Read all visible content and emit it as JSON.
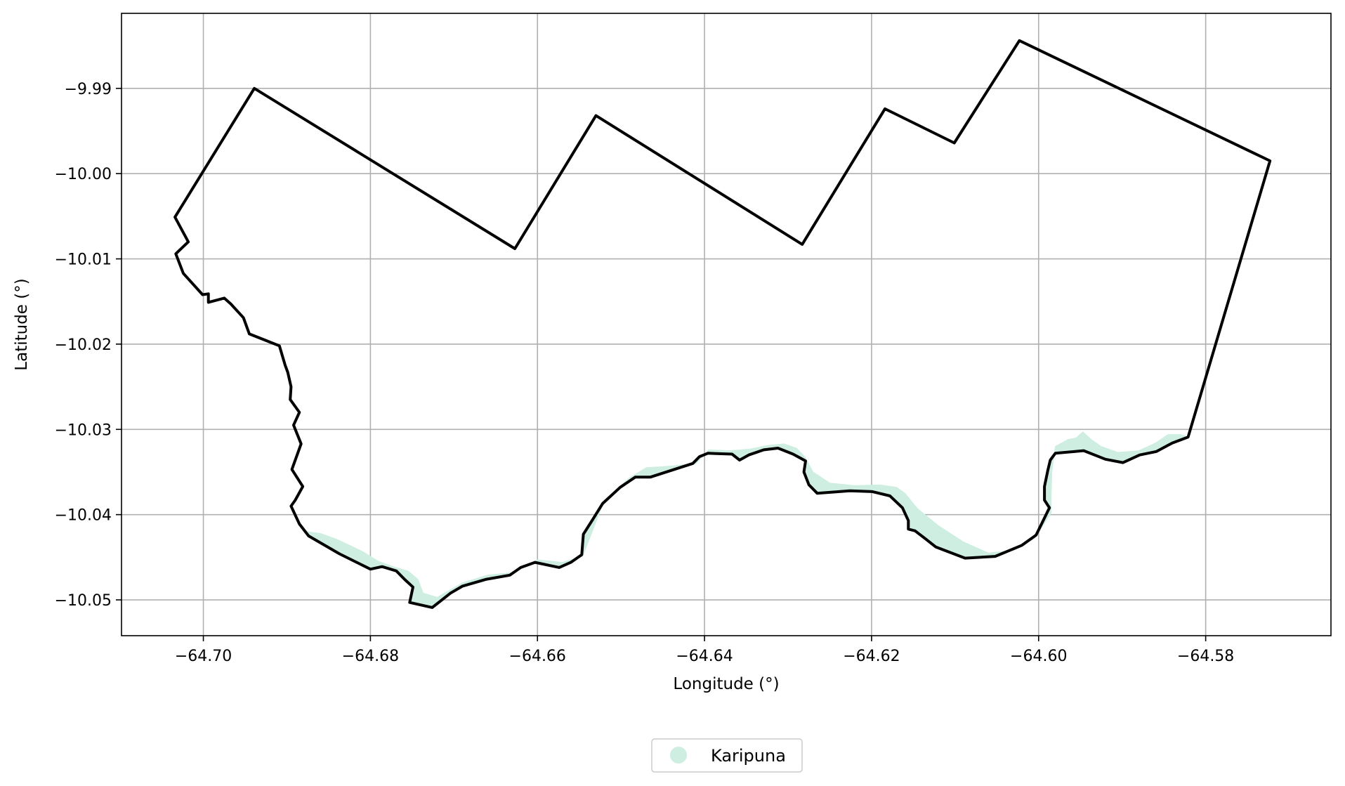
{
  "map": {
    "xlabel": "Longitude (°)",
    "ylabel": "Latitude (°)",
    "xlim": [
      -64.7098,
      -64.565
    ],
    "ylim": [
      -10.0542,
      -9.9812
    ],
    "xticks": [
      {
        "value": -64.7,
        "label": "−64.70"
      },
      {
        "value": -64.68,
        "label": "−64.68"
      },
      {
        "value": -64.66,
        "label": "−64.66"
      },
      {
        "value": -64.64,
        "label": "−64.64"
      },
      {
        "value": -64.62,
        "label": "−64.62"
      },
      {
        "value": -64.6,
        "label": "−64.60"
      },
      {
        "value": -64.58,
        "label": "−64.58"
      }
    ],
    "yticks": [
      {
        "value": -9.99,
        "label": "−9.99"
      },
      {
        "value": -10.0,
        "label": "−10.00"
      },
      {
        "value": -10.01,
        "label": "−10.01"
      },
      {
        "value": -10.02,
        "label": "−10.02"
      },
      {
        "value": -10.03,
        "label": "−10.03"
      },
      {
        "value": -10.04,
        "label": "−10.04"
      },
      {
        "value": -10.05,
        "label": "−10.05"
      }
    ],
    "grid": true,
    "boundary_color": "#000000",
    "territory_color": "#cdeee0",
    "legend": {
      "placement": "bottom-center",
      "entries": [
        {
          "label": "Karipuna",
          "color": "#cdeee0",
          "marker": "circle"
        }
      ]
    },
    "boundary": [
      [
        -64.7034,
        -10.0051
      ],
      [
        -64.6939,
        -9.99
      ],
      [
        -64.6627,
        -10.0088
      ],
      [
        -64.653,
        -9.9932
      ],
      [
        -64.6283,
        -10.0083
      ],
      [
        -64.6184,
        -9.9924
      ],
      [
        -64.6101,
        -9.9964
      ],
      [
        -64.6023,
        -9.9844
      ],
      [
        -64.5723,
        -9.9985
      ],
      [
        -64.5821,
        -10.0309
      ],
      [
        -64.584,
        -10.0316
      ],
      [
        -64.5859,
        -10.0326
      ],
      [
        -64.5879,
        -10.033
      ],
      [
        -64.5899,
        -10.0339
      ],
      [
        -64.592,
        -10.0335
      ],
      [
        -64.5946,
        -10.0325
      ],
      [
        -64.598,
        -10.0328
      ],
      [
        -64.5986,
        -10.0336
      ],
      [
        -64.5989,
        -10.0348
      ],
      [
        -64.5993,
        -10.0367
      ],
      [
        -64.5993,
        -10.0383
      ],
      [
        -64.5987,
        -10.0392
      ],
      [
        -64.6003,
        -10.0424
      ],
      [
        -64.602,
        -10.0436
      ],
      [
        -64.6052,
        -10.0449
      ],
      [
        -64.6088,
        -10.0451
      ],
      [
        -64.6123,
        -10.0438
      ],
      [
        -64.6136,
        -10.0428
      ],
      [
        -64.6148,
        -10.0419
      ],
      [
        -64.6156,
        -10.0417
      ],
      [
        -64.6156,
        -10.0407
      ],
      [
        -64.6163,
        -10.0392
      ],
      [
        -64.6178,
        -10.0378
      ],
      [
        -64.6199,
        -10.0373
      ],
      [
        -64.6226,
        -10.0372
      ],
      [
        -64.6265,
        -10.0375
      ],
      [
        -64.6275,
        -10.0365
      ],
      [
        -64.6281,
        -10.035
      ],
      [
        -64.6279,
        -10.0337
      ],
      [
        -64.6294,
        -10.0329
      ],
      [
        -64.6312,
        -10.0322
      ],
      [
        -64.6329,
        -10.0324
      ],
      [
        -64.6347,
        -10.033
      ],
      [
        -64.6358,
        -10.0336
      ],
      [
        -64.6367,
        -10.0329
      ],
      [
        -64.6396,
        -10.0328
      ],
      [
        -64.6406,
        -10.0332
      ],
      [
        -64.6414,
        -10.034
      ],
      [
        -64.6465,
        -10.0356
      ],
      [
        -64.6483,
        -10.0356
      ],
      [
        -64.6501,
        -10.0368
      ],
      [
        -64.6522,
        -10.0387
      ],
      [
        -64.6534,
        -10.0406
      ],
      [
        -64.6545,
        -10.0423
      ],
      [
        -64.6547,
        -10.0447
      ],
      [
        -64.656,
        -10.0456
      ],
      [
        -64.6574,
        -10.0462
      ],
      [
        -64.6603,
        -10.0456
      ],
      [
        -64.662,
        -10.0462
      ],
      [
        -64.6633,
        -10.0471
      ],
      [
        -64.6662,
        -10.0476
      ],
      [
        -64.669,
        -10.0484
      ],
      [
        -64.6704,
        -10.0492
      ],
      [
        -64.6726,
        -10.0509
      ],
      [
        -64.6753,
        -10.0503
      ],
      [
        -64.6749,
        -10.0485
      ],
      [
        -64.6759,
        -10.0476
      ],
      [
        -64.6769,
        -10.0466
      ],
      [
        -64.6786,
        -10.0461
      ],
      [
        -64.68,
        -10.0464
      ],
      [
        -64.6837,
        -10.0446
      ],
      [
        -64.6874,
        -10.0425
      ],
      [
        -64.6885,
        -10.0411
      ],
      [
        -64.6895,
        -10.039
      ],
      [
        -64.689,
        -10.0383
      ],
      [
        -64.6881,
        -10.0367
      ],
      [
        -64.6894,
        -10.0347
      ],
      [
        -64.6883,
        -10.0317
      ],
      [
        -64.6892,
        -10.0295
      ],
      [
        -64.6885,
        -10.028
      ],
      [
        -64.6896,
        -10.0265
      ],
      [
        -64.6895,
        -10.025
      ],
      [
        -64.6899,
        -10.0233
      ],
      [
        -64.6902,
        -10.0225
      ],
      [
        -64.6909,
        -10.0202
      ],
      [
        -64.6945,
        -10.0188
      ],
      [
        -64.6952,
        -10.0169
      ],
      [
        -64.6967,
        -10.0153
      ],
      [
        -64.6975,
        -10.0146
      ],
      [
        -64.6994,
        -10.0151
      ],
      [
        -64.6994,
        -10.0141
      ],
      [
        -64.7001,
        -10.0142
      ],
      [
        -64.7024,
        -10.0117
      ],
      [
        -64.7033,
        -10.0094
      ],
      [
        -64.7018,
        -10.008
      ],
      [
        -64.7034,
        -10.0051
      ]
    ],
    "territory_upper": [
      [
        -64.6876,
        -10.042
      ],
      [
        -64.686,
        -10.0422
      ],
      [
        -64.684,
        -10.0429
      ],
      [
        -64.681,
        -10.0443
      ],
      [
        -64.679,
        -10.0455
      ],
      [
        -64.677,
        -10.0462
      ],
      [
        -64.6755,
        -10.0466
      ],
      [
        -64.6743,
        -10.0476
      ],
      [
        -64.6737,
        -10.0492
      ],
      [
        -64.672,
        -10.0497
      ],
      [
        -64.669,
        -10.048
      ],
      [
        -64.666,
        -10.0471
      ],
      [
        -64.663,
        -10.0468
      ],
      [
        -64.66,
        -10.0453
      ],
      [
        -64.657,
        -10.0456
      ],
      [
        -64.6546,
        -10.0449
      ],
      [
        -64.652,
        -10.0383
      ],
      [
        -64.649,
        -10.0357
      ],
      [
        -64.647,
        -10.0345
      ],
      [
        -64.644,
        -10.0343
      ],
      [
        -64.641,
        -10.034
      ],
      [
        -64.6395,
        -10.0324
      ],
      [
        -64.637,
        -10.0325
      ],
      [
        -64.6345,
        -10.0323
      ],
      [
        -64.6325,
        -10.0319
      ],
      [
        -64.6305,
        -10.0317
      ],
      [
        -64.629,
        -10.0322
      ],
      [
        -64.628,
        -10.0332
      ],
      [
        -64.627,
        -10.035
      ],
      [
        -64.625,
        -10.0363
      ],
      [
        -64.622,
        -10.0366
      ],
      [
        -64.619,
        -10.0365
      ],
      [
        -64.617,
        -10.0368
      ],
      [
        -64.616,
        -10.0375
      ],
      [
        -64.6145,
        -10.0393
      ],
      [
        -64.612,
        -10.0413
      ],
      [
        -64.609,
        -10.0432
      ],
      [
        -64.606,
        -10.0445
      ],
      [
        -64.603,
        -10.0442
      ],
      [
        -64.6005,
        -10.0428
      ],
      [
        -64.5985,
        -10.0398
      ],
      [
        -64.5985,
        -10.0378
      ],
      [
        -64.5984,
        -10.0348
      ],
      [
        -64.598,
        -10.032
      ],
      [
        -64.5965,
        -10.0312
      ],
      [
        -64.5955,
        -10.031
      ],
      [
        -64.5947,
        -10.0303
      ],
      [
        -64.5937,
        -10.0312
      ],
      [
        -64.5925,
        -10.032
      ],
      [
        -64.5905,
        -10.0327
      ],
      [
        -64.588,
        -10.0325
      ],
      [
        -64.586,
        -10.0316
      ],
      [
        -64.5845,
        -10.0306
      ],
      [
        -64.583,
        -10.0306
      ],
      [
        -64.5821,
        -10.0309
      ]
    ]
  }
}
